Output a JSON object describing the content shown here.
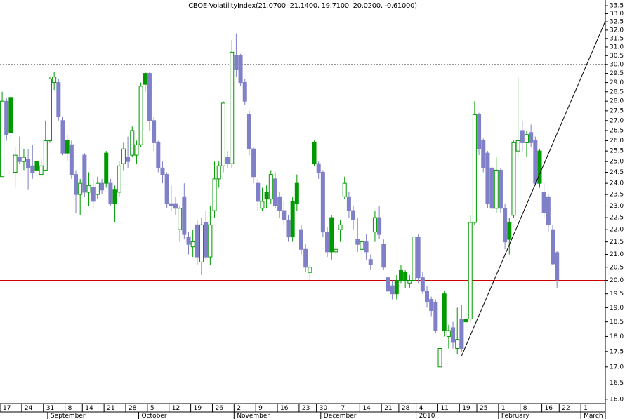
{
  "chart_data": {
    "type": "candlestick",
    "title": "CBOE VolatilityIndex(21.0700, 21.1400, 19.7100, 20.0200, -0.61000)",
    "yscale": "log",
    "ylim": [
      15.87,
      33.86
    ],
    "yticks": [
      {
        "value": 16,
        "label": "16.0"
      },
      16.5,
      {
        "value": 17,
        "label": "17.0"
      },
      17.5,
      {
        "value": 18,
        "label": "18.0"
      },
      18.5,
      {
        "value": 19,
        "label": "19.0"
      },
      19.5,
      {
        "value": 20,
        "label": "20.0"
      },
      20.5,
      {
        "value": 21,
        "label": "21.0"
      },
      21.5,
      {
        "value": 22,
        "label": "22.0"
      },
      22.5,
      {
        "value": 23,
        "label": "23.0"
      },
      23.5,
      {
        "value": 24,
        "label": "24.0"
      },
      24.5,
      {
        "value": 25,
        "label": "25.0"
      },
      25.5,
      {
        "value": 26,
        "label": "26.0"
      },
      26.5,
      {
        "value": 27,
        "label": "27.0"
      },
      27.5,
      {
        "value": 28,
        "label": "28.0"
      },
      28.5,
      {
        "value": 29,
        "label": "29.0"
      },
      29.5,
      {
        "value": 30,
        "label": "30.0"
      },
      30.5,
      {
        "value": 31,
        "label": "31.0"
      },
      31.5,
      {
        "value": 32,
        "label": "32.0"
      },
      32.5,
      {
        "value": 33,
        "label": "33.0"
      },
      33.5
    ],
    "categories": [
      "17",
      null,
      null,
      null,
      null,
      "24",
      null,
      null,
      null,
      null,
      "31",
      null,
      null,
      null,
      null,
      "8",
      null,
      null,
      null,
      "14",
      null,
      null,
      null,
      null,
      "21",
      null,
      null,
      null,
      null,
      "28",
      null,
      null,
      null,
      null,
      "5",
      null,
      null,
      null,
      null,
      "12",
      null,
      null,
      null,
      null,
      "19",
      null,
      null,
      null,
      null,
      "26",
      null,
      null,
      null,
      null,
      "2",
      null,
      null,
      null,
      null,
      "9",
      null,
      null,
      null,
      null,
      "16",
      null,
      null,
      null,
      null,
      "23",
      null,
      null,
      null,
      "30",
      null,
      null,
      null,
      null,
      "7",
      null,
      null,
      null,
      null,
      "14",
      null,
      null,
      null,
      null,
      "21",
      null,
      null,
      null,
      "28",
      null,
      null,
      null,
      "4",
      null,
      null,
      null,
      null,
      "11",
      null,
      null,
      null,
      null,
      "19",
      null,
      null,
      null,
      "25",
      null,
      null,
      null,
      null,
      "1",
      null,
      null,
      null,
      null,
      "8",
      null,
      null,
      null,
      null,
      "16",
      null,
      null,
      null,
      "22",
      null,
      null,
      null,
      null,
      "1",
      null,
      null,
      null,
      null
    ],
    "month_labels": [
      "September",
      "October",
      "November",
      "December",
      "2010",
      "February",
      "March"
    ],
    "month_starts": [
      11,
      32,
      54,
      74,
      96,
      115,
      134
    ],
    "up_color": "#009900",
    "down_color": "#8080c8",
    "open": [
      24.3,
      28.0,
      28.2,
      24.5,
      25.2,
      25.0,
      25.1,
      24.8,
      25.0,
      24.4,
      24.6,
      26.0,
      29.0,
      29.0,
      27.0,
      26.0,
      25.8,
      24.4,
      23.5,
      25.3,
      23.6,
      23.8,
      23.5,
      24.0,
      25.4,
      24.0,
      23.7,
      23.6,
      24.9,
      25.2,
      25.3,
      25.3,
      25.8,
      29.5,
      29.5,
      27.0,
      25.9,
      24.7,
      24.4,
      23.1,
      23.1,
      22.0,
      23.4,
      21.7,
      21.3,
      22.2,
      20.7,
      22.3,
      20.9,
      22.8,
      24.2,
      24.8,
      25.2,
      24.9,
      30.5,
      30.5,
      29.0,
      27.3,
      25.6,
      24.0,
      22.9,
      23.6,
      23.3,
      24.2,
      23.4,
      22.8,
      22.4,
      23.2,
      24.0,
      22.0,
      21.2,
      20.3,
      25.9,
      24.9,
      24.5,
      21.9,
      22.5,
      21.1,
      22.0,
      23.4,
      23.4,
      22.8,
      21.6,
      21.2,
      21.5,
      20.8,
      21.9,
      22.5,
      21.4,
      20.1,
      19.8,
      20.0,
      20.4,
      20.3,
      19.9,
      20.0,
      21.7,
      20.1,
      19.6,
      19.3,
      19.2,
      17.0,
      19.5,
      18.0,
      18.3,
      17.6,
      18.6,
      18.6,
      18.6,
      22.3,
      27.3,
      26.0,
      25.4,
      24.7,
      22.9,
      24.6,
      22.9,
      22.3,
      22.6,
      25.5,
      26.5,
      25.9,
      26.4,
      26.0,
      25.5,
      23.6,
      23.4,
      22.0,
      21.07,
      null,
      null,
      null,
      null,
      null,
      null,
      null,
      null,
      null,
      null
    ],
    "high": [
      28.5,
      28.2,
      28.3,
      25.7,
      26.2,
      25.6,
      25.6,
      25.8,
      25.3,
      25.1,
      27.0,
      29.3,
      29.6,
      29.2,
      27.2,
      26.3,
      26.0,
      24.6,
      24.2,
      25.4,
      24.5,
      24.2,
      24.3,
      24.2,
      25.5,
      24.2,
      23.9,
      25.0,
      25.9,
      26.2,
      26.7,
      26.0,
      29.0,
      29.6,
      29.6,
      27.2,
      26.0,
      25.0,
      24.5,
      23.9,
      23.4,
      23.0,
      24.0,
      21.9,
      22.0,
      22.4,
      22.5,
      22.8,
      23.0,
      25.0,
      25.0,
      28.0,
      25.5,
      31.4,
      31.8,
      30.6,
      29.2,
      27.5,
      25.7,
      24.2,
      23.8,
      23.9,
      24.6,
      24.5,
      23.6,
      23.2,
      22.6,
      23.4,
      24.4,
      22.2,
      21.4,
      20.6,
      26.0,
      25.0,
      24.6,
      22.1,
      22.6,
      21.4,
      22.4,
      24.3,
      23.6,
      23.0,
      22.5,
      21.6,
      21.8,
      21.0,
      22.8,
      23.0,
      21.6,
      20.4,
      20.0,
      20.2,
      20.6,
      20.4,
      20.2,
      21.9,
      21.8,
      20.3,
      19.8,
      19.4,
      19.3,
      17.7,
      19.6,
      18.4,
      18.5,
      19.0,
      19.1,
      19.1,
      22.6,
      28.0,
      27.4,
      26.1,
      25.5,
      24.8,
      25.2,
      24.7,
      23.1,
      22.5,
      26.0,
      29.3,
      27.0,
      26.5,
      26.8,
      26.2,
      25.6,
      24.0,
      23.5,
      22.2,
      21.14,
      null,
      null,
      null,
      null,
      null,
      null,
      null,
      null,
      null,
      null
    ],
    "low": [
      24.3,
      26.0,
      26.0,
      23.8,
      24.9,
      24.6,
      23.7,
      24.2,
      24.3,
      24.3,
      24.6,
      25.9,
      28.6,
      27.0,
      25.3,
      25.0,
      24.2,
      22.7,
      22.6,
      23.4,
      23.0,
      22.9,
      23.3,
      23.5,
      23.8,
      23.0,
      22.3,
      23.4,
      24.6,
      24.7,
      25.2,
      24.9,
      25.7,
      28.5,
      26.5,
      25.5,
      24.5,
      24.0,
      22.9,
      22.8,
      22.6,
      21.5,
      21.6,
      21.0,
      20.9,
      20.6,
      20.2,
      20.8,
      20.6,
      22.5,
      23.8,
      24.5,
      24.7,
      24.7,
      29.3,
      28.8,
      27.8,
      25.3,
      24.0,
      22.8,
      22.8,
      22.9,
      23.1,
      22.9,
      22.5,
      22.2,
      21.5,
      21.5,
      22.8,
      21.0,
      20.3,
      20.0,
      24.8,
      24.2,
      21.7,
      20.9,
      20.8,
      21.0,
      21.5,
      23.3,
      22.5,
      22.0,
      21.1,
      21.0,
      20.8,
      20.4,
      21.5,
      21.6,
      20.4,
      19.4,
      19.3,
      19.3,
      19.9,
      19.7,
      19.7,
      19.8,
      19.9,
      19.5,
      19.0,
      18.7,
      18.1,
      16.9,
      18.0,
      17.6,
      17.6,
      17.4,
      17.5,
      18.3,
      18.5,
      22.2,
      25.3,
      24.5,
      22.9,
      22.8,
      22.7,
      22.7,
      21.2,
      21.0,
      22.5,
      25.2,
      25.5,
      25.2,
      25.7,
      23.9,
      23.8,
      22.5,
      21.9,
      20.6,
      19.71,
      null,
      null,
      null,
      null,
      null,
      null,
      null,
      null,
      null,
      null
    ],
    "close": [
      28.0,
      26.3,
      26.4,
      25.3,
      25.0,
      25.2,
      24.7,
      24.5,
      24.6,
      24.8,
      26.0,
      29.2,
      29.3,
      27.2,
      25.4,
      25.4,
      24.4,
      23.5,
      24.0,
      23.6,
      23.9,
      23.2,
      24.0,
      23.7,
      24.0,
      23.1,
      23.1,
      24.8,
      25.6,
      25.0,
      26.5,
      25.8,
      28.8,
      28.9,
      27.0,
      25.9,
      24.7,
      24.4,
      23.1,
      23.0,
      22.9,
      22.9,
      21.8,
      21.4,
      21.5,
      20.9,
      22.2,
      20.9,
      22.2,
      24.2,
      24.8,
      27.9,
      24.9,
      30.7,
      29.7,
      29.0,
      28.0,
      25.6,
      24.3,
      23.2,
      23.2,
      23.3,
      24.4,
      23.0,
      22.8,
      22.4,
      21.7,
      21.7,
      23.1,
      21.2,
      20.5,
      20.5,
      24.9,
      24.5,
      21.9,
      21.1,
      21.1,
      21.2,
      22.2,
      24.0,
      22.8,
      22.4,
      21.4,
      21.5,
      21.1,
      20.6,
      22.5,
      21.8,
      20.5,
      19.6,
      19.5,
      19.5,
      20.0,
      20.0,
      20.0,
      21.7,
      20.1,
      19.6,
      19.2,
      18.9,
      18.2,
      17.6,
      18.2,
      18.2,
      17.8,
      17.9,
      17.6,
      18.5,
      22.3,
      27.3,
      25.6,
      24.7,
      23.1,
      22.9,
      24.6,
      22.9,
      21.5,
      21.6,
      25.9,
      26.0,
      25.9,
      26.3,
      25.9,
      24.0,
      24.0,
      22.7,
      22.2,
      20.63,
      20.02,
      null,
      null,
      null,
      null,
      null,
      null,
      null,
      null,
      null,
      null
    ],
    "hlines": [
      {
        "value": 30.0,
        "color": "#555555",
        "style": "dashed"
      },
      {
        "value": 20.0,
        "color": "#cc0000",
        "style": "solid"
      }
    ],
    "trend_line": {
      "x": [
        106,
        139.2
      ],
      "values": [
        17.36,
        32.54
      ],
      "color": "#000000"
    }
  }
}
